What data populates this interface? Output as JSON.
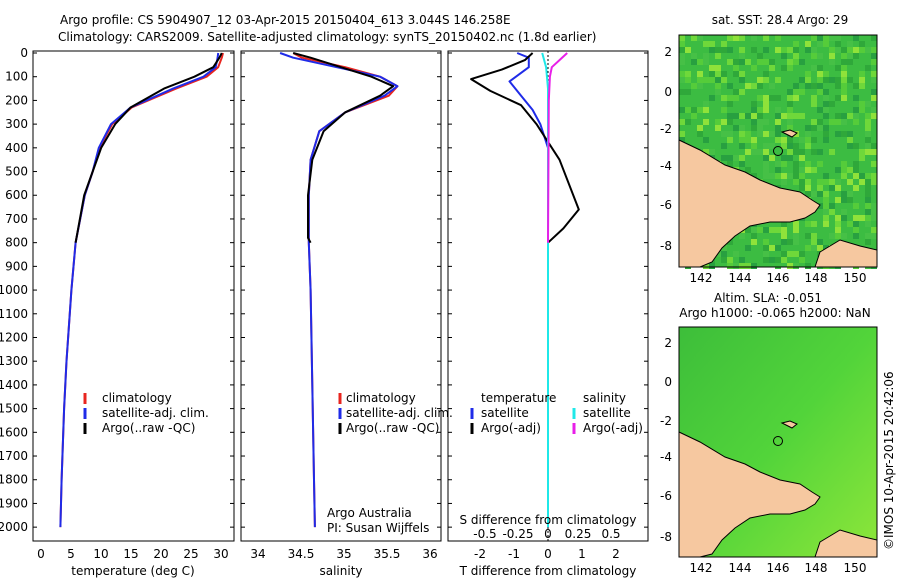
{
  "title_line1": "Argo profile: CS 5904907_12 03-Apr-2015 20150404_613 3.044S 146.258E",
  "title_line2": "Climatology: CARS2009. Satellite-adjusted climatology: synTS_20150402.nc (1.8d earlier)",
  "watermark": "©IMOS 10-Apr-2015 20:42:06",
  "depth_ticks": [
    0,
    100,
    200,
    300,
    400,
    500,
    600,
    700,
    800,
    900,
    1000,
    1100,
    1200,
    1300,
    1400,
    1500,
    1600,
    1700,
    1800,
    1900,
    2000
  ],
  "temp_panel": {
    "xlabel": "temperature (deg C)",
    "xticks": [
      0,
      5,
      10,
      15,
      20,
      25,
      30
    ],
    "legend": [
      "climatology",
      "satellite-adj. clim.",
      "Argo(..raw -QC)"
    ]
  },
  "sal_panel": {
    "xlabel": "salinity",
    "xticks": [
      "34",
      "34.5",
      "35",
      "35.5",
      "36"
    ],
    "legend": [
      "climatology",
      "satellite-adj. clim.",
      "Argo(..raw -QC)"
    ],
    "note1": "Argo Australia",
    "note2": "PI: Susan Wijffels"
  },
  "diff_panel": {
    "xlabel_bottom": "T difference from climatology",
    "xlabel_top": "S difference from climatology",
    "xticks_bottom": [
      "-2",
      "-1",
      "0",
      "1",
      "2"
    ],
    "xticks_top": [
      "-0.5",
      "-0.25",
      "0",
      "0.25",
      "0.5"
    ],
    "legend_temp_head": "temperature",
    "legend_sal_head": "salinity",
    "legend_temp": [
      "satellite",
      "Argo(-adj)"
    ],
    "legend_sal": [
      "satellite",
      "Argo(-adj)"
    ]
  },
  "map_sst": {
    "title": "sat. SST: 28.4  Argo: 29",
    "yticks": [
      "2",
      "0",
      "-2",
      "-4",
      "-6",
      "-8"
    ],
    "xticks": [
      "142",
      "144",
      "146",
      "148",
      "150"
    ]
  },
  "map_sla": {
    "title1": "Altim. SLA: -0.051",
    "title2": "Argo h1000: -0.065 h2000: NaN",
    "yticks": [
      "2",
      "0",
      "-2",
      "-4",
      "-6",
      "-8"
    ],
    "xticks": [
      "142",
      "144",
      "146",
      "148",
      "150"
    ]
  },
  "colors": {
    "climatology": "#e8251f",
    "satellite": "#1f2be8",
    "argo": "#000000",
    "sat_sal": "#1fe8e8",
    "argo_sal": "#e81fe8",
    "land": "#f6c8a0",
    "ocean": "#39c23d"
  },
  "chart_data": [
    {
      "type": "line",
      "xlabel": "temperature (deg C)",
      "xlim": [
        -2,
        31
      ],
      "ylim": [
        2050,
        0
      ],
      "series": [
        {
          "name": "climatology",
          "x": [
            29.2,
            29.0,
            28.4,
            26.5,
            21.5,
            14.2,
            11.0,
            8.9,
            7.8,
            6.5,
            5.0,
            4.3,
            3.5,
            3.1,
            2.7,
            2.5
          ],
          "y": [
            0,
            20,
            60,
            100,
            150,
            230,
            300,
            400,
            500,
            600,
            800,
            1000,
            1300,
            1500,
            1800,
            2000
          ]
        },
        {
          "name": "satellite-adj. clim.",
          "x": [
            28.4,
            28.3,
            28.0,
            26.0,
            21.0,
            14.0,
            10.8,
            8.8,
            7.8,
            6.5,
            5.0,
            4.3,
            3.5,
            3.1,
            2.7,
            2.5
          ],
          "y": [
            0,
            20,
            60,
            100,
            150,
            230,
            300,
            400,
            500,
            600,
            800,
            1000,
            1300,
            1500,
            1800,
            2000
          ]
        },
        {
          "name": "Argo(..raw -QC)",
          "x": [
            29.0,
            28.6,
            27.6,
            24.5,
            19.5,
            14.0,
            11.5,
            9.2,
            7.8,
            6.4,
            5.0
          ],
          "y": [
            0,
            20,
            60,
            100,
            150,
            230,
            300,
            400,
            500,
            600,
            800
          ]
        }
      ]
    },
    {
      "type": "line",
      "xlabel": "salinity",
      "xlim": [
        33.8,
        36.1
      ],
      "ylim": [
        2050,
        0
      ],
      "series": [
        {
          "name": "climatology",
          "x": [
            34.4,
            34.5,
            35.0,
            35.4,
            35.6,
            35.5,
            35.0,
            34.7,
            34.6,
            34.58,
            34.58,
            34.6,
            34.62,
            34.64,
            34.65
          ],
          "y": [
            0,
            20,
            60,
            100,
            140,
            180,
            250,
            330,
            450,
            600,
            800,
            1000,
            1400,
            1800,
            2000
          ]
        },
        {
          "name": "satellite-adj. clim.",
          "x": [
            34.25,
            34.4,
            34.9,
            35.4,
            35.6,
            35.45,
            35.0,
            34.7,
            34.6,
            34.58,
            34.58,
            34.6,
            34.62,
            34.64,
            34.65
          ],
          "y": [
            0,
            20,
            60,
            100,
            140,
            180,
            250,
            330,
            450,
            600,
            800,
            1000,
            1400,
            1800,
            2000
          ]
        },
        {
          "name": "Argo(..raw -QC)",
          "x": [
            34.4,
            34.6,
            34.95,
            35.3,
            35.55,
            35.4,
            35.0,
            34.75,
            34.62,
            34.57,
            34.57,
            34.6
          ],
          "y": [
            0,
            20,
            60,
            100,
            140,
            180,
            250,
            330,
            450,
            600,
            780,
            800
          ]
        }
      ]
    },
    {
      "type": "line",
      "xlabel": "T difference from climatology",
      "xlim": [
        -2.6,
        2.6
      ],
      "ylim": [
        2050,
        0
      ],
      "series": [
        {
          "name": "temperature satellite",
          "x": [
            -0.8,
            -0.5,
            -0.5,
            -1.0,
            -0.7,
            -0.4,
            -0.2,
            0,
            0,
            0
          ],
          "y": [
            0,
            20,
            60,
            120,
            180,
            240,
            300,
            400,
            800,
            2000
          ]
        },
        {
          "name": "temperature Argo(-adj)",
          "x": [
            -0.4,
            -0.6,
            -1.2,
            -2.0,
            -1.5,
            -0.7,
            -0.3,
            0.3,
            0.8,
            0.4,
            0
          ],
          "y": [
            0,
            30,
            70,
            110,
            160,
            220,
            300,
            450,
            660,
            740,
            800
          ]
        },
        {
          "name": "salinity satellite",
          "x": [
            -0.15,
            -0.05,
            0,
            0,
            0
          ],
          "y": [
            0,
            60,
            150,
            300,
            2000
          ]
        },
        {
          "name": "salinity Argo(-adj)",
          "x": [
            0.5,
            0.3,
            0.1,
            0.05,
            0.02,
            0
          ],
          "y": [
            0,
            30,
            60,
            100,
            200,
            800
          ]
        }
      ]
    }
  ]
}
